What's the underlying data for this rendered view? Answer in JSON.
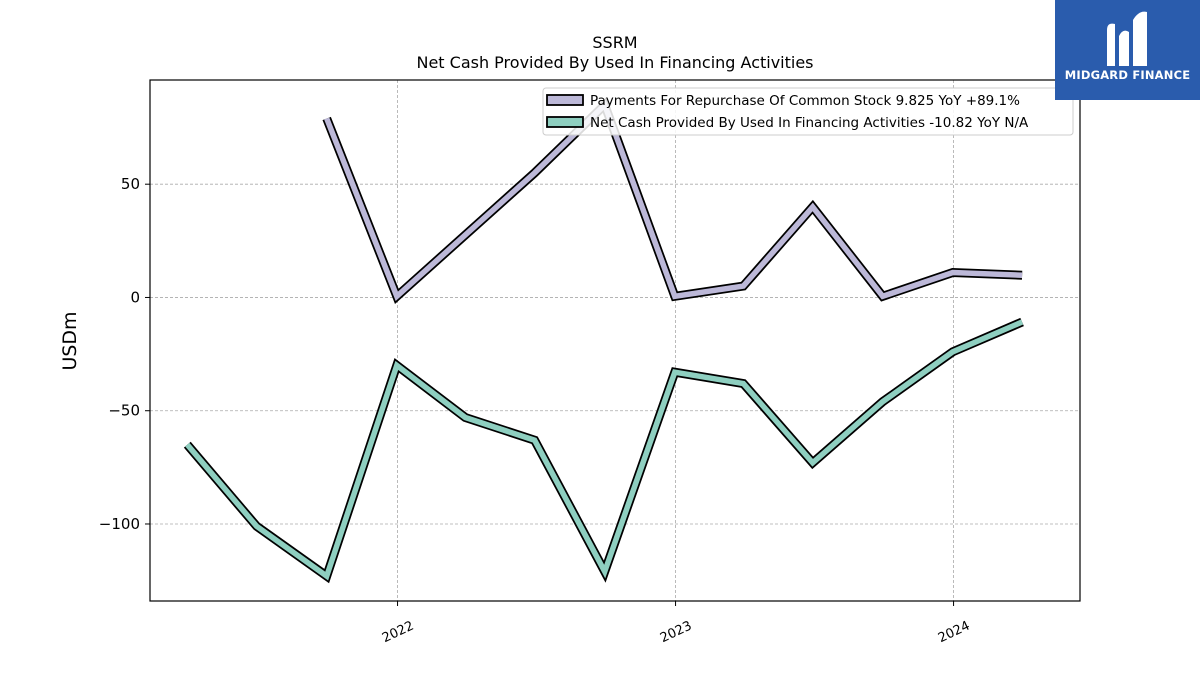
{
  "brand": {
    "name": "MIDGARD FINANCE",
    "bg_color": "#2a5cad"
  },
  "chart_data": {
    "type": "line",
    "title": "SSRM",
    "subtitle": "Net Cash Provided By Used In Financing Activities",
    "ylabel": "USDm",
    "xlabel": "",
    "ylim": [
      -134,
      96
    ],
    "xlim": [
      "2021-02-10",
      "2024-06-15"
    ],
    "yticks": [
      -100,
      -50,
      0,
      50
    ],
    "xticks": [
      "2022",
      "2023",
      "2024"
    ],
    "grid": true,
    "legend_position": "top-right",
    "series": [
      {
        "name": "Payments For Repurchase Of Common Stock  9.825 YoY +89.1%",
        "color": "#bcb8d8",
        "points": [
          [
            "2021-09-30",
            79
          ],
          [
            "2021-12-31",
            0.5
          ],
          [
            "2022-06-30",
            55
          ],
          [
            "2022-09-30",
            85
          ],
          [
            "2022-12-31",
            0.5
          ],
          [
            "2023-03-31",
            5
          ],
          [
            "2023-06-30",
            40
          ],
          [
            "2023-09-30",
            0.5
          ],
          [
            "2023-12-31",
            11
          ],
          [
            "2024-03-31",
            9.825
          ]
        ]
      },
      {
        "name": "Net Cash Provided By Used In Financing Activities  -10.82 YoY N/A",
        "color": "#8ecfc0",
        "points": [
          [
            "2021-03-31",
            -65
          ],
          [
            "2021-06-30",
            -101
          ],
          [
            "2021-09-30",
            -123
          ],
          [
            "2021-12-31",
            -30
          ],
          [
            "2022-03-31",
            -53
          ],
          [
            "2022-06-30",
            -63
          ],
          [
            "2022-09-30",
            -121
          ],
          [
            "2022-12-31",
            -33
          ],
          [
            "2023-03-31",
            -38
          ],
          [
            "2023-06-30",
            -73
          ],
          [
            "2023-09-30",
            -46
          ],
          [
            "2023-12-31",
            -24
          ],
          [
            "2024-03-31",
            -10.82
          ]
        ]
      }
    ]
  }
}
